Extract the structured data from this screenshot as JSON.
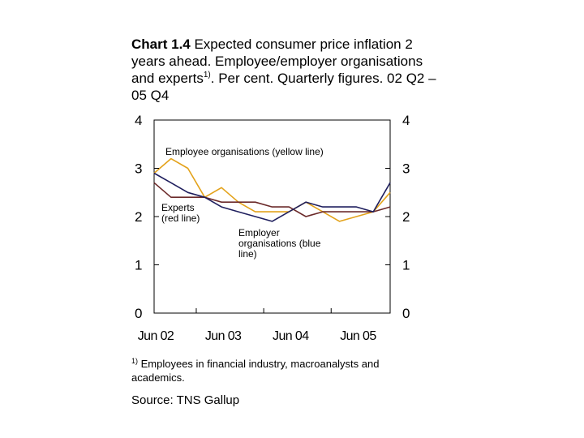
{
  "title": {
    "number": "Chart 1.4",
    "text": " Expected consumer price inflation 2 years ahead. Employee/employer organisations and experts",
    "sup": "1)",
    "tail": ". Per cent. Quarterly figures. 02 Q2 – 05 Q4"
  },
  "footnote": {
    "sup": "1)",
    "text": " Employees in financial industry, macroanalysts and academics."
  },
  "source": "Source: TNS Gallup",
  "chart_data": {
    "type": "line",
    "x_ticks": [
      "Jun 02",
      "Jun 03",
      "Jun 04",
      "Jun 05"
    ],
    "y_ticks": [
      "0",
      "1",
      "2",
      "3",
      "4"
    ],
    "ylim": [
      0,
      4
    ],
    "xlim": [
      "02 Q2",
      "05 Q4"
    ],
    "grid": false,
    "quarters": [
      "02 Q2",
      "02 Q3",
      "02 Q4",
      "03 Q1",
      "03 Q2",
      "03 Q3",
      "03 Q4",
      "04 Q1",
      "04 Q2",
      "04 Q3",
      "04 Q4",
      "05 Q1",
      "05 Q2",
      "05 Q3",
      "05 Q4"
    ],
    "series": [
      {
        "name": "Employee organisations (yellow line)",
        "color": "#e3a21a",
        "values": [
          2.9,
          3.2,
          3.0,
          2.4,
          2.6,
          2.3,
          2.1,
          2.1,
          2.1,
          2.3,
          2.1,
          1.9,
          2.0,
          2.1,
          2.5
        ]
      },
      {
        "name": "Experts (red line)",
        "color": "#6b2a2a",
        "values": [
          2.7,
          2.4,
          2.4,
          2.4,
          2.3,
          2.3,
          2.3,
          2.2,
          2.2,
          2.0,
          2.1,
          2.1,
          2.1,
          2.1,
          2.2
        ]
      },
      {
        "name": "Employer organisations (blue line)",
        "color": "#1f1f5e",
        "values": [
          2.9,
          2.7,
          2.5,
          2.4,
          2.2,
          2.1,
          2.0,
          1.9,
          2.1,
          2.3,
          2.2,
          2.2,
          2.2,
          2.1,
          2.7
        ]
      }
    ],
    "annotations": [
      {
        "text": "Employee organisations (yellow line)",
        "series": 0
      },
      {
        "text": "Experts\n(red line)",
        "series": 1
      },
      {
        "text": "Employer\norganisations (blue\nline)",
        "series": 2
      }
    ]
  }
}
